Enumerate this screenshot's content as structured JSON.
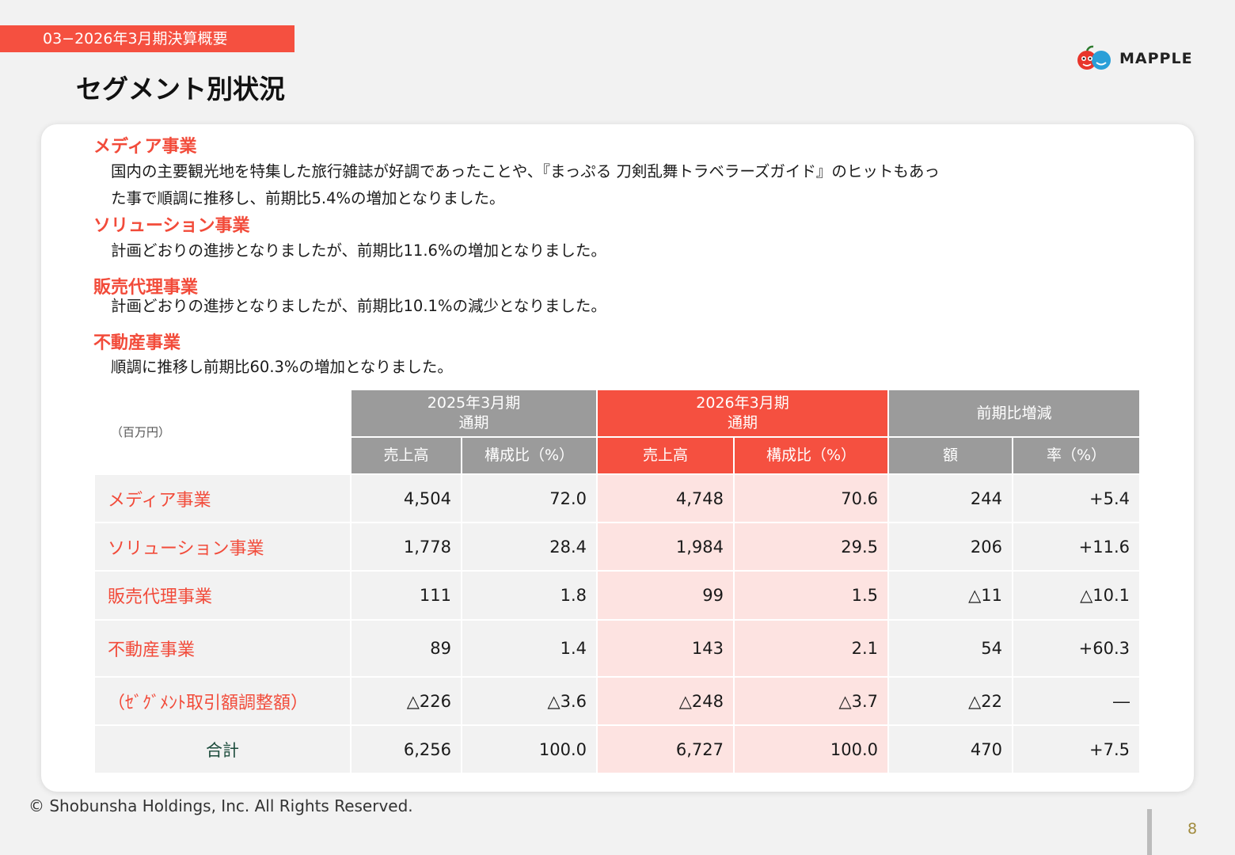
{
  "header": {
    "section_tag": "03−2026年3月期決算概要",
    "title": "セグメント別状況",
    "logo_text": "MAPPLE",
    "brand_color": "#f55040"
  },
  "segments": [
    {
      "heading": "メディア事業",
      "lines": [
        "国内の主要観光地を特集した旅行雑誌が好調であったことや、『まっぷる 刀剣乱舞トラベラーズガイド』のヒットもあっ",
        "た事で順調に推移し、前期比5.4%の増加となりました。"
      ]
    },
    {
      "heading": "ソリューション事業",
      "lines": [
        "計画どおりの進捗となりましたが、前期比11.6%の増加となりました。"
      ]
    },
    {
      "heading": "販売代理事業",
      "lines": [
        "計画どおりの進捗となりましたが、前期比10.1%の減少となりました。"
      ]
    },
    {
      "heading": "不動産事業",
      "lines": [
        "順調に推移し前期比60.3%の増加となりました。"
      ]
    }
  ],
  "table": {
    "unit": "（百万円）",
    "period_prev": [
      "2025年3月期",
      "通期"
    ],
    "period_curr": [
      "2026年3月期",
      "通期"
    ],
    "change": "前期比増減",
    "subheaders": [
      "売上高",
      "構成比（%）",
      "売上高",
      "構成比（%）",
      "額",
      "率（%）"
    ],
    "rows": [
      {
        "label": "メディア事業",
        "values": [
          "4,504",
          "72.0",
          "4,748",
          "70.6",
          "244",
          "+5.4"
        ]
      },
      {
        "label": "ソリューション事業",
        "values": [
          "1,778",
          "28.4",
          "1,984",
          "29.5",
          "206",
          "+11.6"
        ]
      },
      {
        "label": "販売代理事業",
        "values": [
          "111",
          "1.8",
          "99",
          "1.5",
          "△11",
          "△10.1"
        ]
      },
      {
        "label": "不動産事業",
        "values": [
          "89",
          "1.4",
          "143",
          "2.1",
          "54",
          "+60.3"
        ]
      },
      {
        "label": "（ｾﾞｸﾞﾒﾝﾄ取引額調整額）",
        "values": [
          "△226",
          "△3.6",
          "△248",
          "△3.7",
          "△22",
          "―"
        ]
      },
      {
        "label": "合計",
        "values": [
          "6,256",
          "100.0",
          "6,727",
          "100.0",
          "470",
          "+7.5"
        ]
      }
    ]
  },
  "footer": {
    "copyright": "© Shobunsha Holdings, Inc. All Rights Reserved.",
    "page_number": "8"
  }
}
